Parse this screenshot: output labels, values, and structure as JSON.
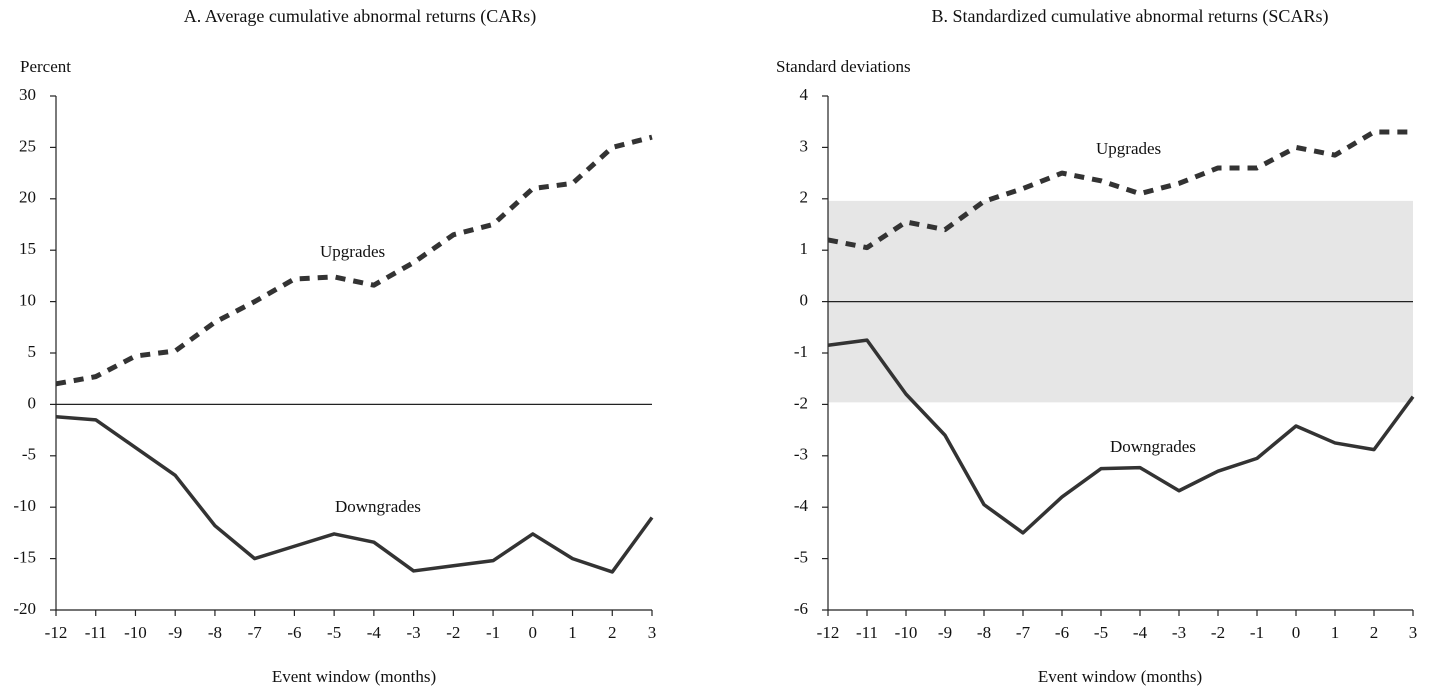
{
  "chart_data": [
    {
      "type": "line",
      "title": "A. Average cumulative abnormal returns (CARs)",
      "ylabel": "Percent",
      "xlabel": "Event window (months)",
      "x": [
        -12,
        -11,
        -10,
        -9,
        -8,
        -7,
        -6,
        -5,
        -4,
        -3,
        -2,
        -1,
        0,
        1,
        2,
        3
      ],
      "xlim": [
        -12,
        3
      ],
      "xticks": [
        -12,
        -11,
        -10,
        -9,
        -8,
        -7,
        -6,
        -5,
        -4,
        -3,
        -2,
        -1,
        0,
        1,
        2,
        3
      ],
      "ylim": [
        -20,
        30
      ],
      "yticks": [
        -20,
        -15,
        -10,
        -5,
        0,
        5,
        10,
        15,
        20,
        25,
        30
      ],
      "series": [
        {
          "name": "Upgrades",
          "color": "#333333",
          "style": "dashed",
          "values": [
            2,
            2.7,
            4.7,
            5.2,
            8,
            10,
            12.2,
            12.4,
            11.6,
            13.8,
            16.5,
            17.5,
            21,
            21.5,
            25,
            26
          ]
        },
        {
          "name": "Downgrades",
          "color": "#333333",
          "style": "solid",
          "values": [
            -1.2,
            -1.5,
            -4.2,
            -6.9,
            -11.8,
            -15,
            -13.8,
            -12.6,
            -13.4,
            -16.2,
            -15.7,
            -15.2,
            -12.6,
            -15,
            -16.3,
            -11
          ]
        }
      ]
    },
    {
      "type": "line",
      "title": "B. Standardized cumulative abnormal returns (SCARs)",
      "ylabel": "Standard deviations",
      "xlabel": "Event window (months)",
      "x": [
        -12,
        -11,
        -10,
        -9,
        -8,
        -7,
        -6,
        -5,
        -4,
        -3,
        -2,
        -1,
        0,
        1,
        2,
        3
      ],
      "xlim": [
        -12,
        3
      ],
      "xticks": [
        -12,
        -11,
        -10,
        -9,
        -8,
        -7,
        -6,
        -5,
        -4,
        -3,
        -2,
        -1,
        0,
        1,
        2,
        3
      ],
      "ylim": [
        -6,
        4
      ],
      "yticks": [
        -6,
        -5,
        -4,
        -3,
        -2,
        -1,
        0,
        1,
        2,
        3,
        4
      ],
      "band": [
        -1.96,
        1.96
      ],
      "band_color": "#e6e6e6",
      "series": [
        {
          "name": "Upgrades",
          "color": "#333333",
          "style": "dashed",
          "values": [
            1.2,
            1.05,
            1.55,
            1.4,
            1.95,
            2.2,
            2.5,
            2.35,
            2.1,
            2.3,
            2.6,
            2.6,
            3.0,
            2.85,
            3.3,
            3.3
          ]
        },
        {
          "name": "Downgrades",
          "color": "#333333",
          "style": "solid",
          "values": [
            -0.85,
            -0.75,
            -1.8,
            -2.6,
            -3.95,
            -4.5,
            -3.8,
            -3.25,
            -3.23,
            -3.68,
            -3.3,
            -3.05,
            -2.42,
            -2.75,
            -2.88,
            -1.85
          ]
        }
      ]
    }
  ]
}
